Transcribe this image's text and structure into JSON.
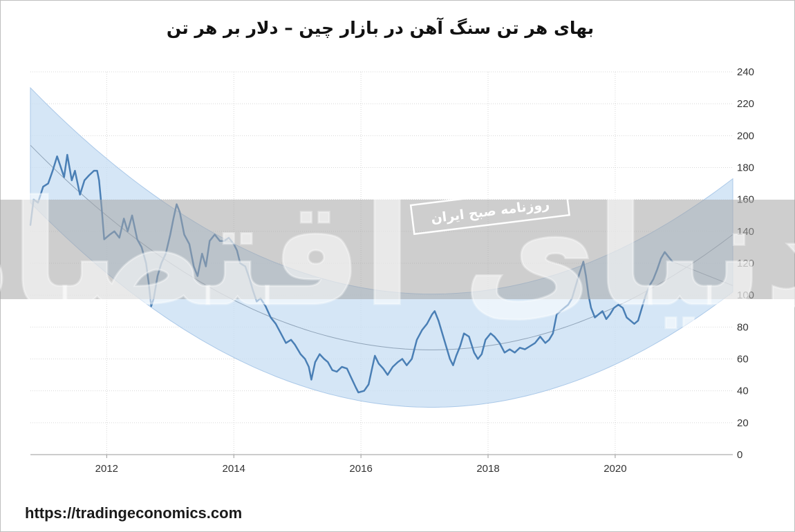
{
  "chart_data": {
    "type": "line",
    "title": "بهای هر تن سنگ آهن در بازار چین – دلار بر هر تن",
    "xlabel": "",
    "ylabel": "",
    "xlim": [
      2010.8,
      2021.85
    ],
    "ylim": [
      0,
      240
    ],
    "x_ticks": [
      "2012",
      "2014",
      "2016",
      "2018",
      "2020"
    ],
    "y_ticks": [
      "240",
      "220",
      "200",
      "180",
      "160",
      "140",
      "120",
      "100",
      "80",
      "60",
      "40",
      "20",
      "0"
    ],
    "grid": true,
    "series": [
      {
        "points": [
          [
            2010.8,
            144
          ],
          [
            2010.85,
            160
          ],
          [
            2010.92,
            158
          ],
          [
            2011.0,
            168
          ],
          [
            2011.08,
            170
          ],
          [
            2011.15,
            178
          ],
          [
            2011.22,
            187
          ],
          [
            2011.28,
            180
          ],
          [
            2011.33,
            174
          ],
          [
            2011.38,
            188
          ],
          [
            2011.45,
            172
          ],
          [
            2011.5,
            178
          ],
          [
            2011.58,
            163
          ],
          [
            2011.65,
            172
          ],
          [
            2011.72,
            175
          ],
          [
            2011.8,
            178
          ],
          [
            2011.85,
            178
          ],
          [
            2011.88,
            172
          ],
          [
            2011.92,
            155
          ],
          [
            2011.96,
            135
          ],
          [
            2012.05,
            138
          ],
          [
            2012.12,
            140
          ],
          [
            2012.2,
            136
          ],
          [
            2012.27,
            148
          ],
          [
            2012.33,
            140
          ],
          [
            2012.4,
            150
          ],
          [
            2012.48,
            135
          ],
          [
            2012.55,
            130
          ],
          [
            2012.62,
            120
          ],
          [
            2012.66,
            108
          ],
          [
            2012.7,
            93
          ],
          [
            2012.74,
            98
          ],
          [
            2012.8,
            112
          ],
          [
            2012.86,
            120
          ],
          [
            2012.93,
            126
          ],
          [
            2013.0,
            138
          ],
          [
            2013.05,
            148
          ],
          [
            2013.1,
            157
          ],
          [
            2013.15,
            152
          ],
          [
            2013.22,
            138
          ],
          [
            2013.3,
            132
          ],
          [
            2013.37,
            118
          ],
          [
            2013.43,
            112
          ],
          [
            2013.5,
            126
          ],
          [
            2013.56,
            118
          ],
          [
            2013.62,
            134
          ],
          [
            2013.7,
            138
          ],
          [
            2013.78,
            134
          ],
          [
            2013.85,
            134
          ],
          [
            2013.92,
            136
          ],
          [
            2014.0,
            132
          ],
          [
            2014.05,
            128
          ],
          [
            2014.1,
            120
          ],
          [
            2014.18,
            118
          ],
          [
            2014.25,
            110
          ],
          [
            2014.3,
            103
          ],
          [
            2014.36,
            96
          ],
          [
            2014.42,
            98
          ],
          [
            2014.5,
            93
          ],
          [
            2014.58,
            86
          ],
          [
            2014.66,
            82
          ],
          [
            2014.74,
            76
          ],
          [
            2014.82,
            70
          ],
          [
            2014.9,
            72
          ],
          [
            2014.96,
            69
          ],
          [
            2015.05,
            63
          ],
          [
            2015.12,
            60
          ],
          [
            2015.18,
            55
          ],
          [
            2015.22,
            47
          ],
          [
            2015.28,
            58
          ],
          [
            2015.35,
            63
          ],
          [
            2015.42,
            60
          ],
          [
            2015.48,
            58
          ],
          [
            2015.55,
            53
          ],
          [
            2015.62,
            52
          ],
          [
            2015.7,
            55
          ],
          [
            2015.78,
            54
          ],
          [
            2015.85,
            48
          ],
          [
            2015.92,
            42
          ],
          [
            2015.96,
            39
          ],
          [
            2016.05,
            40
          ],
          [
            2016.12,
            44
          ],
          [
            2016.18,
            55
          ],
          [
            2016.22,
            62
          ],
          [
            2016.28,
            57
          ],
          [
            2016.35,
            54
          ],
          [
            2016.42,
            50
          ],
          [
            2016.5,
            55
          ],
          [
            2016.58,
            58
          ],
          [
            2016.65,
            60
          ],
          [
            2016.72,
            56
          ],
          [
            2016.8,
            60
          ],
          [
            2016.88,
            72
          ],
          [
            2016.96,
            78
          ],
          [
            2017.04,
            82
          ],
          [
            2017.12,
            88
          ],
          [
            2017.16,
            90
          ],
          [
            2017.22,
            84
          ],
          [
            2017.28,
            76
          ],
          [
            2017.34,
            68
          ],
          [
            2017.4,
            60
          ],
          [
            2017.45,
            56
          ],
          [
            2017.5,
            62
          ],
          [
            2017.56,
            68
          ],
          [
            2017.62,
            76
          ],
          [
            2017.7,
            74
          ],
          [
            2017.78,
            64
          ],
          [
            2017.84,
            60
          ],
          [
            2017.9,
            63
          ],
          [
            2017.96,
            72
          ],
          [
            2018.04,
            76
          ],
          [
            2018.1,
            74
          ],
          [
            2018.18,
            70
          ],
          [
            2018.26,
            64
          ],
          [
            2018.34,
            66
          ],
          [
            2018.42,
            64
          ],
          [
            2018.5,
            67
          ],
          [
            2018.58,
            66
          ],
          [
            2018.66,
            68
          ],
          [
            2018.74,
            70
          ],
          [
            2018.82,
            74
          ],
          [
            2018.9,
            70
          ],
          [
            2018.96,
            72
          ],
          [
            2019.02,
            76
          ],
          [
            2019.08,
            88
          ],
          [
            2019.14,
            90
          ],
          [
            2019.2,
            92
          ],
          [
            2019.26,
            94
          ],
          [
            2019.32,
            98
          ],
          [
            2019.38,
            106
          ],
          [
            2019.44,
            114
          ],
          [
            2019.5,
            121
          ],
          [
            2019.54,
            112
          ],
          [
            2019.58,
            100
          ],
          [
            2019.62,
            92
          ],
          [
            2019.68,
            86
          ],
          [
            2019.74,
            88
          ],
          [
            2019.8,
            90
          ],
          [
            2019.86,
            85
          ],
          [
            2019.92,
            88
          ],
          [
            2019.98,
            92
          ],
          [
            2020.05,
            94
          ],
          [
            2020.12,
            92
          ],
          [
            2020.18,
            86
          ],
          [
            2020.24,
            84
          ],
          [
            2020.3,
            82
          ],
          [
            2020.36,
            84
          ],
          [
            2020.42,
            92
          ],
          [
            2020.48,
            100
          ],
          [
            2020.54,
            106
          ],
          [
            2020.6,
            110
          ],
          [
            2020.66,
            116
          ],
          [
            2020.72,
            123
          ],
          [
            2020.78,
            127
          ],
          [
            2020.84,
            124
          ],
          [
            2020.9,
            121
          ]
        ]
      }
    ],
    "regression": {
      "center": [
        [
          2010.8,
          194
        ],
        [
          2016.8,
          66
        ],
        [
          2021.85,
          138
        ]
      ],
      "upper": [
        [
          2010.8,
          230
        ],
        [
          2016.8,
          101
        ],
        [
          2021.85,
          173
        ]
      ],
      "lower": [
        [
          2010.8,
          158
        ],
        [
          2016.8,
          30
        ],
        [
          2021.85,
          102
        ]
      ]
    },
    "trend_tail": [
      [
        2020.9,
        121
      ],
      [
        2021.85,
        106
      ]
    ]
  },
  "colors": {
    "series": "#4a7fb5",
    "band": "#c7ddf3",
    "band_edge": "#aac8e8",
    "regression_line": "#8fa3b8",
    "grid": "#d7d7d7",
    "watermark_strip": "#a6a6a6"
  },
  "watermark": {
    "text": "روزنامه صبح ایران",
    "brand": "دنیای اقتصاد"
  },
  "source": "https://tradingeconomics.com"
}
